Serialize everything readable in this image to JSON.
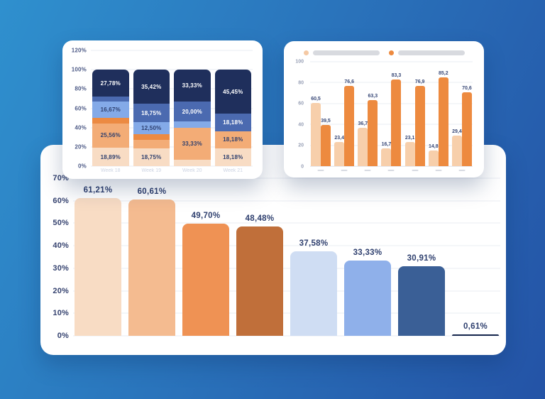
{
  "page": {
    "background_gradient": {
      "start": "#2f90ce",
      "end": "#2453a6",
      "angle_deg": 115
    }
  },
  "chart_data": [
    {
      "id": "stacked-weekly",
      "type": "stacked-bar",
      "title": "",
      "categories": [
        "Week 18",
        "Week 19",
        "Week 20",
        "Week 21"
      ],
      "categories_note": "labels are faint/clipped at card edge",
      "y_ticks": [
        {
          "label": "0%",
          "value": 0
        },
        {
          "label": "20%",
          "value": 20
        },
        {
          "label": "40%",
          "value": 40
        },
        {
          "label": "60%",
          "value": 60
        },
        {
          "label": "80%",
          "value": 80
        },
        {
          "label": "100%",
          "value": 100
        },
        {
          "label": "120%",
          "value": 120
        }
      ],
      "ylim": [
        0,
        120
      ],
      "grid": true,
      "series": [
        {
          "name": "segment-lightest-peach",
          "color": "#f8dcc4",
          "label_color": "#2e3f6e",
          "values": [
            18.89,
            18.75,
            6.67,
            18.18
          ],
          "labels": [
            "18,89%",
            "18,75%",
            null,
            "18,18%"
          ]
        },
        {
          "name": "segment-light-orange",
          "color": "#f3ac76",
          "label_color": "#2e3f6e",
          "values": [
            25.56,
            8.33,
            33.33,
            18.18
          ],
          "labels": [
            "25,56%",
            null,
            "33,33%",
            "18,18%"
          ]
        },
        {
          "name": "segment-orange",
          "color": "#ec8a42",
          "label_color": "#ffffff",
          "values": [
            5.56,
            6.25,
            0,
            0
          ],
          "labels": [
            null,
            null,
            null,
            null
          ]
        },
        {
          "name": "segment-light-blue",
          "color": "#84aae8",
          "label_color": "#2e3f6e",
          "values": [
            16.67,
            12.5,
            6.67,
            0
          ],
          "labels": [
            "16,67%",
            "12,50%",
            null,
            null
          ]
        },
        {
          "name": "segment-medium-blue",
          "color": "#4b6ab0",
          "label_color": "#ffffff",
          "values": [
            5.56,
            18.75,
            20.0,
            18.18
          ],
          "labels": [
            null,
            "18,75%",
            "20,00%",
            "18,18%"
          ]
        },
        {
          "name": "segment-navy",
          "color": "#1f2f5c",
          "label_color": "#ffffff",
          "values": [
            27.78,
            35.42,
            33.33,
            45.45
          ],
          "labels": [
            "27,78%",
            "35,42%",
            "33,33%",
            "45,45%"
          ]
        }
      ]
    },
    {
      "id": "grouped-pairs",
      "type": "grouped-bar",
      "title": "",
      "y_ticks": [
        {
          "label": "0",
          "value": 0
        },
        {
          "label": "20",
          "value": 20
        },
        {
          "label": "40",
          "value": 40
        },
        {
          "label": "60",
          "value": 60
        },
        {
          "label": "80",
          "value": 80
        },
        {
          "label": "100",
          "value": 100
        }
      ],
      "ylim": [
        0,
        100
      ],
      "grid": true,
      "legend": [
        {
          "name": "series-light",
          "swatch_color": "#f5c9a4",
          "label_placeholder": true
        },
        {
          "name": "series-orange",
          "swatch_color": "#ed8a3f",
          "label_placeholder": true
        }
      ],
      "series": [
        {
          "name": "series-light",
          "color": "#f7cfab",
          "values": [
            60.5,
            23.4,
            36.7,
            16.7,
            23.1,
            14.8,
            29.4
          ],
          "labels": [
            "60,5",
            "23,4",
            "36,7",
            "16,7",
            "23,1",
            "14,8",
            "29,4"
          ]
        },
        {
          "name": "series-orange",
          "color": "#ed8a3f",
          "values": [
            39.5,
            76.6,
            63.3,
            83.3,
            76.9,
            85.2,
            70.6
          ],
          "labels": [
            "39,5",
            "76,6",
            "63,3",
            "83,3",
            "76,9",
            "85,2",
            "70,6"
          ]
        }
      ]
    },
    {
      "id": "main-ranked",
      "type": "bar",
      "title": "",
      "y_ticks": [
        {
          "label": "0%",
          "value": 0
        },
        {
          "label": "10%",
          "value": 10
        },
        {
          "label": "20%",
          "value": 20
        },
        {
          "label": "30%",
          "value": 30
        },
        {
          "label": "40%",
          "value": 40
        },
        {
          "label": "50%",
          "value": 50
        },
        {
          "label": "60%",
          "value": 60
        },
        {
          "label": "70%",
          "value": 70
        }
      ],
      "ylim": [
        0,
        70
      ],
      "grid": true,
      "values": [
        61.21,
        60.61,
        49.7,
        48.48,
        37.58,
        33.33,
        30.91,
        0.61
      ],
      "labels": [
        "61,21%",
        "60,61%",
        "49,70%",
        "48,48%",
        "37,58%",
        "33,33%",
        "30,91%",
        "0,61%"
      ],
      "bar_colors": [
        "#f8dcc4",
        "#f4bb90",
        "#ef9254",
        "#c06f3a",
        "#cfddf3",
        "#8fb0ea",
        "#3a5f96",
        "#16264d"
      ]
    }
  ]
}
